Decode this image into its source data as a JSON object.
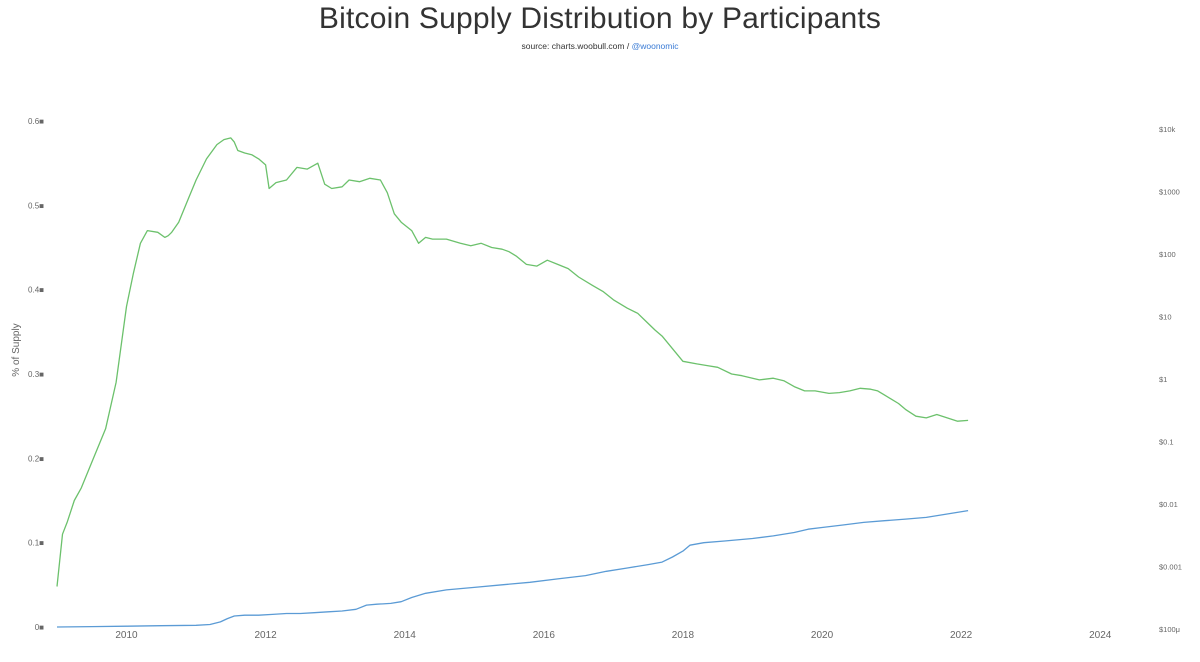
{
  "header": {
    "title": "Bitcoin Supply Distribution by Participants",
    "source_prefix": "source: charts.woobull.com /",
    "source_handle": "@woonomic"
  },
  "chart_data": {
    "type": "line",
    "title": "Bitcoin Supply Distribution by Participants",
    "ylabel": "% of Supply",
    "xlim": [
      2008.9,
      2024.5
    ],
    "ylim": [
      0,
      0.6
    ],
    "x_ticks": [
      2010,
      2012,
      2014,
      2016,
      2018,
      2020,
      2022,
      2024
    ],
    "y_ticks": [
      0,
      0.1,
      0.2,
      0.3,
      0.4,
      0.5,
      0.6
    ],
    "y_tick_labels": [
      "0■",
      "0.1■",
      "0.2■",
      "0.3■",
      "0.4■",
      "0.5■",
      "0.6■"
    ],
    "right_axis": {
      "scale": "log",
      "tick_labels": [
        "$100μ",
        "$0.001",
        "$0.01",
        "$0.1",
        "$1",
        "$10",
        "$100",
        "$1000",
        "$10k"
      ]
    },
    "series": [
      {
        "name": "green",
        "color": "#6cc16c",
        "x": [
          2009.0,
          2009.08,
          2009.15,
          2009.25,
          2009.35,
          2009.5,
          2009.7,
          2009.85,
          2010.0,
          2010.1,
          2010.2,
          2010.3,
          2010.45,
          2010.55,
          2010.6,
          2010.65,
          2010.75,
          2010.9,
          2011.0,
          2011.15,
          2011.3,
          2011.4,
          2011.5,
          2011.55,
          2011.6,
          2011.7,
          2011.8,
          2011.9,
          2012.0,
          2012.05,
          2012.15,
          2012.3,
          2012.45,
          2012.6,
          2012.75,
          2012.85,
          2012.95,
          2013.1,
          2013.2,
          2013.35,
          2013.5,
          2013.65,
          2013.75,
          2013.85,
          2013.95,
          2014.1,
          2014.2,
          2014.3,
          2014.4,
          2014.6,
          2014.8,
          2014.95,
          2015.1,
          2015.25,
          2015.4,
          2015.5,
          2015.6,
          2015.75,
          2015.9,
          2016.05,
          2016.2,
          2016.35,
          2016.5,
          2016.7,
          2016.85,
          2017.0,
          2017.2,
          2017.35,
          2017.5,
          2017.6,
          2017.7,
          2017.85,
          2018.0,
          2018.2,
          2018.35,
          2018.5,
          2018.7,
          2018.85,
          2019.0,
          2019.1,
          2019.3,
          2019.45,
          2019.6,
          2019.75,
          2019.9,
          2020.1,
          2020.25,
          2020.4,
          2020.55,
          2020.7,
          2020.8,
          2020.9,
          2021.0,
          2021.1,
          2021.2,
          2021.35,
          2021.5,
          2021.65,
          2021.8,
          2021.95,
          2022.1
        ],
        "values": [
          0.048,
          0.11,
          0.125,
          0.15,
          0.165,
          0.195,
          0.235,
          0.29,
          0.38,
          0.42,
          0.455,
          0.47,
          0.468,
          0.462,
          0.464,
          0.468,
          0.48,
          0.51,
          0.53,
          0.555,
          0.572,
          0.578,
          0.58,
          0.575,
          0.565,
          0.562,
          0.56,
          0.555,
          0.548,
          0.52,
          0.527,
          0.53,
          0.545,
          0.543,
          0.55,
          0.525,
          0.52,
          0.522,
          0.53,
          0.528,
          0.532,
          0.53,
          0.515,
          0.49,
          0.48,
          0.47,
          0.455,
          0.462,
          0.46,
          0.46,
          0.455,
          0.452,
          0.455,
          0.45,
          0.448,
          0.445,
          0.44,
          0.43,
          0.428,
          0.435,
          0.43,
          0.425,
          0.415,
          0.405,
          0.398,
          0.388,
          0.378,
          0.372,
          0.36,
          0.352,
          0.345,
          0.33,
          0.315,
          0.312,
          0.31,
          0.308,
          0.3,
          0.298,
          0.295,
          0.293,
          0.295,
          0.292,
          0.285,
          0.28,
          0.28,
          0.277,
          0.278,
          0.28,
          0.283,
          0.282,
          0.28,
          0.275,
          0.27,
          0.265,
          0.258,
          0.25,
          0.248,
          0.252,
          0.248,
          0.244,
          0.245
        ]
      },
      {
        "name": "blue",
        "color": "#5b9bd5",
        "x": [
          2009.0,
          2009.5,
          2010.0,
          2010.5,
          2011.0,
          2011.2,
          2011.35,
          2011.45,
          2011.55,
          2011.7,
          2011.9,
          2012.1,
          2012.3,
          2012.5,
          2012.7,
          2012.9,
          2013.1,
          2013.3,
          2013.45,
          2013.6,
          2013.8,
          2013.95,
          2014.1,
          2014.3,
          2014.6,
          2015.0,
          2015.4,
          2015.8,
          2016.2,
          2016.6,
          2016.9,
          2017.2,
          2017.5,
          2017.7,
          2017.85,
          2018.0,
          2018.1,
          2018.3,
          2018.6,
          2019.0,
          2019.3,
          2019.6,
          2019.8,
          2020.0,
          2020.3,
          2020.6,
          2020.9,
          2021.2,
          2021.5,
          2021.8,
          2022.1
        ],
        "values": [
          0.0,
          0.0005,
          0.001,
          0.0015,
          0.002,
          0.003,
          0.006,
          0.01,
          0.013,
          0.014,
          0.014,
          0.015,
          0.016,
          0.016,
          0.017,
          0.018,
          0.019,
          0.021,
          0.026,
          0.027,
          0.028,
          0.03,
          0.035,
          0.04,
          0.044,
          0.047,
          0.05,
          0.053,
          0.057,
          0.061,
          0.066,
          0.07,
          0.074,
          0.077,
          0.083,
          0.09,
          0.097,
          0.1,
          0.102,
          0.105,
          0.108,
          0.112,
          0.116,
          0.118,
          0.121,
          0.124,
          0.126,
          0.128,
          0.13,
          0.134,
          0.138
        ]
      }
    ]
  }
}
